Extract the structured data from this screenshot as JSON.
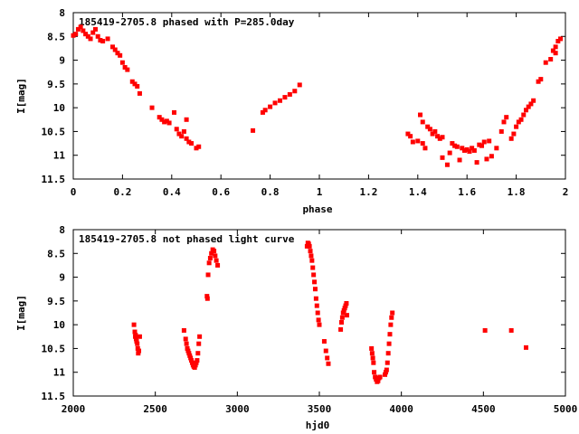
{
  "point_color": "#ff0000",
  "chart_data": [
    {
      "type": "scatter",
      "title": "185419-2705.8 phased with P=285.0day",
      "xlabel": "phase",
      "ylabel": "I[mag]",
      "xlim": [
        0,
        2
      ],
      "ylim": [
        8,
        11.5
      ],
      "y_inverted": true,
      "grid": false,
      "xticks": [
        "0",
        "0.2",
        "0.4",
        "0.6",
        "0.8",
        "1",
        "1.2",
        "1.4",
        "1.6",
        "1.8",
        "2"
      ],
      "yticks": [
        "8",
        "8.5",
        "9",
        "9.5",
        "10",
        "10.5",
        "11",
        "11.5"
      ],
      "points": [
        [
          0.0,
          8.48
        ],
        [
          0.01,
          8.45
        ],
        [
          0.02,
          8.35
        ],
        [
          0.03,
          8.3
        ],
        [
          0.04,
          8.38
        ],
        [
          0.05,
          8.45
        ],
        [
          0.06,
          8.5
        ],
        [
          0.07,
          8.55
        ],
        [
          0.08,
          8.42
        ],
        [
          0.09,
          8.35
        ],
        [
          0.1,
          8.5
        ],
        [
          0.11,
          8.58
        ],
        [
          0.12,
          8.6
        ],
        [
          0.14,
          8.55
        ],
        [
          0.16,
          8.72
        ],
        [
          0.17,
          8.78
        ],
        [
          0.18,
          8.85
        ],
        [
          0.19,
          8.9
        ],
        [
          0.2,
          9.05
        ],
        [
          0.21,
          9.15
        ],
        [
          0.22,
          9.2
        ],
        [
          0.24,
          9.45
        ],
        [
          0.25,
          9.5
        ],
        [
          0.26,
          9.55
        ],
        [
          0.27,
          9.7
        ],
        [
          0.32,
          10.0
        ],
        [
          0.35,
          10.2
        ],
        [
          0.36,
          10.25
        ],
        [
          0.37,
          10.3
        ],
        [
          0.38,
          10.28
        ],
        [
          0.39,
          10.32
        ],
        [
          0.41,
          10.1
        ],
        [
          0.42,
          10.45
        ],
        [
          0.43,
          10.55
        ],
        [
          0.44,
          10.6
        ],
        [
          0.45,
          10.5
        ],
        [
          0.46,
          10.65
        ],
        [
          0.47,
          10.72
        ],
        [
          0.48,
          10.75
        ],
        [
          0.5,
          10.85
        ],
        [
          0.51,
          10.82
        ],
        [
          0.46,
          10.25
        ],
        [
          0.73,
          10.48
        ],
        [
          0.77,
          10.1
        ],
        [
          0.78,
          10.05
        ],
        [
          0.8,
          9.98
        ],
        [
          0.82,
          9.9
        ],
        [
          0.84,
          9.85
        ],
        [
          0.86,
          9.78
        ],
        [
          0.88,
          9.72
        ],
        [
          0.9,
          9.65
        ],
        [
          0.92,
          9.52
        ],
        [
          1.36,
          10.55
        ],
        [
          1.37,
          10.6
        ],
        [
          1.38,
          10.72
        ],
        [
          1.4,
          10.7
        ],
        [
          1.42,
          10.75
        ],
        [
          1.43,
          10.85
        ],
        [
          1.41,
          10.15
        ],
        [
          1.42,
          10.3
        ],
        [
          1.44,
          10.4
        ],
        [
          1.45,
          10.45
        ],
        [
          1.46,
          10.55
        ],
        [
          1.47,
          10.5
        ],
        [
          1.48,
          10.6
        ],
        [
          1.49,
          10.65
        ],
        [
          1.5,
          10.62
        ],
        [
          1.5,
          11.05
        ],
        [
          1.52,
          11.2
        ],
        [
          1.53,
          10.95
        ],
        [
          1.54,
          10.75
        ],
        [
          1.55,
          10.8
        ],
        [
          1.56,
          10.82
        ],
        [
          1.57,
          11.1
        ],
        [
          1.58,
          10.85
        ],
        [
          1.59,
          10.9
        ],
        [
          1.6,
          10.88
        ],
        [
          1.61,
          10.92
        ],
        [
          1.62,
          10.85
        ],
        [
          1.63,
          10.9
        ],
        [
          1.64,
          11.15
        ],
        [
          1.65,
          10.78
        ],
        [
          1.66,
          10.8
        ],
        [
          1.67,
          10.72
        ],
        [
          1.68,
          11.08
        ],
        [
          1.69,
          10.7
        ],
        [
          1.7,
          11.02
        ],
        [
          1.72,
          10.85
        ],
        [
          1.74,
          10.5
        ],
        [
          1.75,
          10.3
        ],
        [
          1.76,
          10.2
        ],
        [
          1.78,
          10.65
        ],
        [
          1.79,
          10.55
        ],
        [
          1.8,
          10.4
        ],
        [
          1.81,
          10.3
        ],
        [
          1.82,
          10.25
        ],
        [
          1.83,
          10.15
        ],
        [
          1.84,
          10.05
        ],
        [
          1.85,
          9.98
        ],
        [
          1.86,
          9.92
        ],
        [
          1.87,
          9.85
        ],
        [
          1.89,
          9.45
        ],
        [
          1.9,
          9.4
        ],
        [
          1.92,
          9.05
        ],
        [
          1.94,
          8.98
        ],
        [
          1.95,
          8.8
        ],
        [
          1.96,
          8.72
        ],
        [
          1.97,
          8.6
        ],
        [
          1.98,
          8.55
        ],
        [
          1.96,
          8.85
        ]
      ]
    },
    {
      "type": "scatter",
      "title": "185419-2705.8 not phased light curve",
      "xlabel": "hjd0",
      "ylabel": "I[mag]",
      "xlim": [
        2000,
        5000
      ],
      "ylim": [
        8,
        11.5
      ],
      "y_inverted": true,
      "grid": false,
      "xticks": [
        "2000",
        "2500",
        "3000",
        "3500",
        "4000",
        "4500",
        "5000"
      ],
      "yticks": [
        "8",
        "8.5",
        "9",
        "9.5",
        "10",
        "10.5",
        "11",
        "11.5"
      ],
      "points": [
        [
          2370,
          10.0
        ],
        [
          2375,
          10.15
        ],
        [
          2378,
          10.25
        ],
        [
          2380,
          10.22
        ],
        [
          2383,
          10.3
        ],
        [
          2386,
          10.35
        ],
        [
          2390,
          10.4
        ],
        [
          2393,
          10.5
        ],
        [
          2396,
          10.6
        ],
        [
          2400,
          10.55
        ],
        [
          2405,
          10.25
        ],
        [
          2675,
          10.12
        ],
        [
          2685,
          10.3
        ],
        [
          2690,
          10.4
        ],
        [
          2695,
          10.5
        ],
        [
          2700,
          10.55
        ],
        [
          2705,
          10.6
        ],
        [
          2710,
          10.65
        ],
        [
          2715,
          10.7
        ],
        [
          2720,
          10.75
        ],
        [
          2725,
          10.8
        ],
        [
          2730,
          10.85
        ],
        [
          2735,
          10.88
        ],
        [
          2740,
          10.9
        ],
        [
          2745,
          10.85
        ],
        [
          2750,
          10.8
        ],
        [
          2755,
          10.75
        ],
        [
          2760,
          10.6
        ],
        [
          2765,
          10.4
        ],
        [
          2770,
          10.25
        ],
        [
          2815,
          9.4
        ],
        [
          2818,
          9.45
        ],
        [
          2822,
          8.95
        ],
        [
          2828,
          8.7
        ],
        [
          2835,
          8.6
        ],
        [
          2842,
          8.5
        ],
        [
          2850,
          8.42
        ],
        [
          2858,
          8.45
        ],
        [
          2865,
          8.55
        ],
        [
          2872,
          8.65
        ],
        [
          2880,
          8.75
        ],
        [
          3425,
          8.35
        ],
        [
          3430,
          8.28
        ],
        [
          3435,
          8.3
        ],
        [
          3440,
          8.35
        ],
        [
          3445,
          8.45
        ],
        [
          3450,
          8.55
        ],
        [
          3455,
          8.65
        ],
        [
          3460,
          8.8
        ],
        [
          3465,
          8.95
        ],
        [
          3470,
          9.1
        ],
        [
          3475,
          9.25
        ],
        [
          3480,
          9.45
        ],
        [
          3485,
          9.6
        ],
        [
          3490,
          9.75
        ],
        [
          3495,
          9.9
        ],
        [
          3500,
          10.0
        ],
        [
          3530,
          10.35
        ],
        [
          3540,
          10.55
        ],
        [
          3548,
          10.7
        ],
        [
          3555,
          10.82
        ],
        [
          3630,
          10.1
        ],
        [
          3635,
          9.95
        ],
        [
          3640,
          9.85
        ],
        [
          3645,
          9.75
        ],
        [
          3650,
          9.7
        ],
        [
          3655,
          9.65
        ],
        [
          3660,
          9.6
        ],
        [
          3665,
          9.55
        ],
        [
          3668,
          9.8
        ],
        [
          3818,
          10.5
        ],
        [
          3822,
          10.6
        ],
        [
          3826,
          10.7
        ],
        [
          3830,
          10.8
        ],
        [
          3834,
          11.0
        ],
        [
          3840,
          11.1
        ],
        [
          3846,
          11.15
        ],
        [
          3852,
          11.2
        ],
        [
          3858,
          11.18
        ],
        [
          3864,
          11.12
        ],
        [
          3870,
          11.1
        ],
        [
          3900,
          11.05
        ],
        [
          3905,
          11.0
        ],
        [
          3910,
          10.95
        ],
        [
          3915,
          10.8
        ],
        [
          3920,
          10.6
        ],
        [
          3925,
          10.4
        ],
        [
          3930,
          10.2
        ],
        [
          3935,
          10.0
        ],
        [
          3940,
          9.85
        ],
        [
          3945,
          9.75
        ],
        [
          4510,
          10.12
        ],
        [
          4670,
          10.12
        ],
        [
          4760,
          10.48
        ]
      ]
    }
  ]
}
